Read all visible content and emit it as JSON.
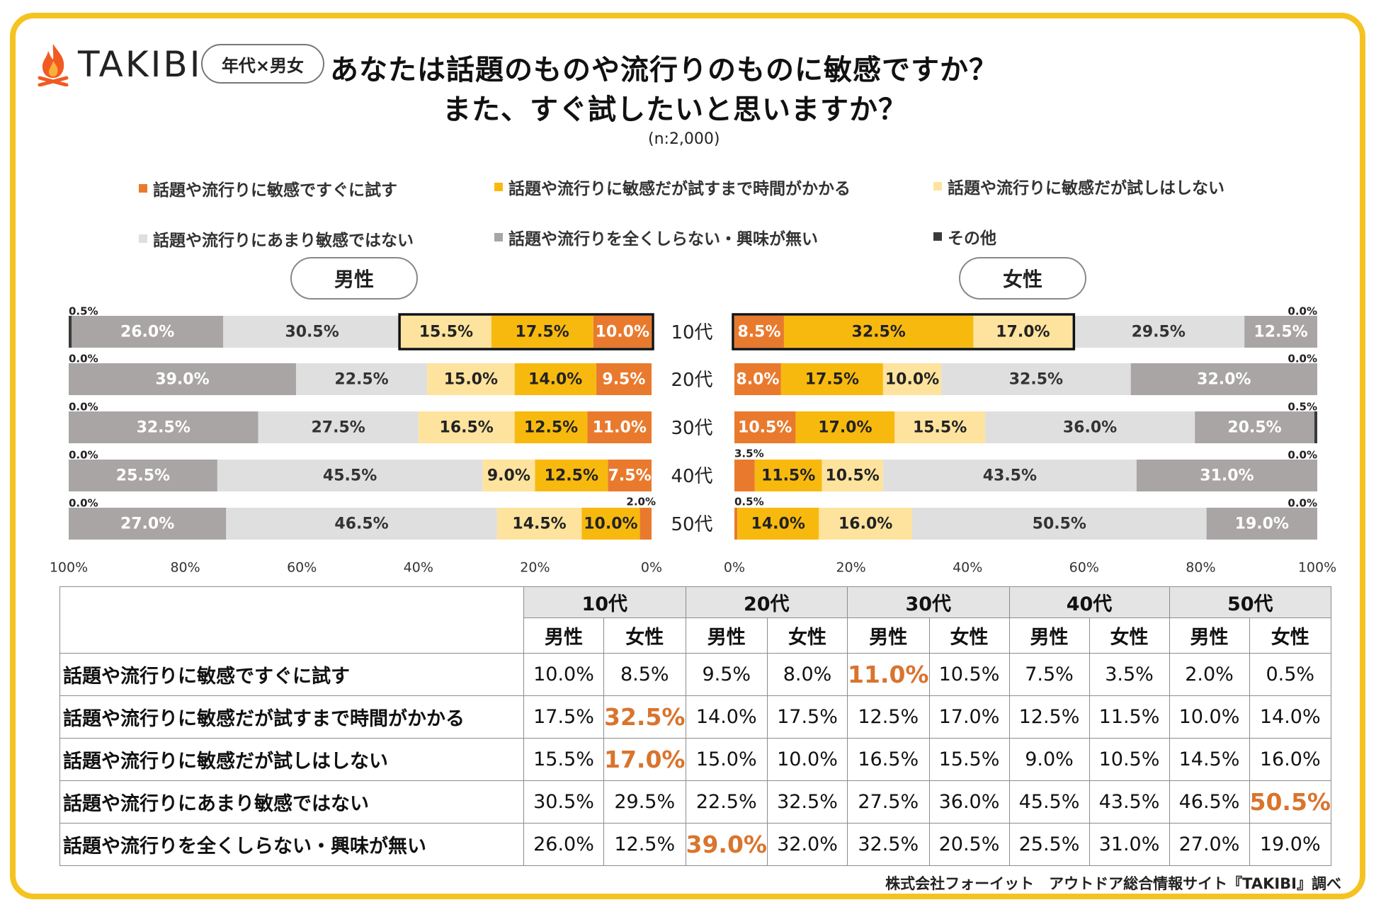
{
  "brand": {
    "name": "TAKIBI",
    "badge": "年代×男女"
  },
  "title": {
    "line1": "あなたは話題のものや流行りのものに敏感ですか？",
    "line2": "また、すぐ試したいと思いますか？",
    "sample": "(n:2,000)"
  },
  "colors": {
    "c1": "#e97a2d",
    "c2": "#f8b90f",
    "c3": "#fde39d",
    "c4": "#e0dfdf",
    "c5": "#a9a5a5",
    "c6": "#3a3a3a",
    "frame": "#f5c320",
    "highlight": "#d9742e"
  },
  "legend": [
    {
      "label": "話題や流行りに敏感ですぐに試す",
      "color": "#e97a2d"
    },
    {
      "label": "話題や流行りに敏感だが試すまで時間がかかる",
      "color": "#f8b90f"
    },
    {
      "label": "話題や流行りに敏感だが試しはしない",
      "color": "#fde39d"
    },
    {
      "label": "話題や流行りにあまり敏感ではない",
      "color": "#e0dfdf"
    },
    {
      "label": "話題や流行りを全くしらない・興味が無い",
      "color": "#a9a5a5"
    },
    {
      "label": "その他",
      "color": "#3a3a3a"
    }
  ],
  "panels": {
    "male": "男性",
    "female": "女性"
  },
  "chart_data": {
    "type": "bar",
    "orientation": "horizontal-stacked-butterfly",
    "categories": [
      "10代",
      "20代",
      "30代",
      "40代",
      "50代"
    ],
    "male_axis_ticks": [
      "100%",
      "80%",
      "60%",
      "40%",
      "20%",
      "0%"
    ],
    "female_axis_ticks": [
      "0%",
      "20%",
      "40%",
      "60%",
      "80%",
      "100%"
    ],
    "xlim": [
      0,
      100
    ],
    "male": [
      {
        "values": [
          10.0,
          17.5,
          15.5,
          30.5,
          26.0,
          0.5
        ],
        "labels": [
          "10.0%",
          "17.5%",
          "15.5%",
          "30.5%",
          "26.0%",
          "0.5%"
        ]
      },
      {
        "values": [
          9.5,
          14.0,
          15.0,
          22.5,
          39.0,
          0.0
        ],
        "labels": [
          "9.5%",
          "14.0%",
          "15.0%",
          "22.5%",
          "39.0%",
          "0.0%"
        ]
      },
      {
        "values": [
          11.0,
          12.5,
          16.5,
          27.5,
          32.5,
          0.0
        ],
        "labels": [
          "11.0%",
          "12.5%",
          "16.5%",
          "27.5%",
          "32.5%",
          "0.0%"
        ]
      },
      {
        "values": [
          7.5,
          12.5,
          9.0,
          45.5,
          25.5,
          0.0
        ],
        "labels": [
          "7.5%",
          "12.5%",
          "9.0%",
          "45.5%",
          "25.5%",
          "0.0%"
        ]
      },
      {
        "values": [
          2.0,
          10.0,
          14.5,
          46.5,
          27.0,
          0.0
        ],
        "labels": [
          "2.0%",
          "10.0%",
          "14.5%",
          "46.5%",
          "27.0%",
          "0.0%"
        ]
      }
    ],
    "female": [
      {
        "values": [
          8.5,
          32.5,
          17.0,
          29.5,
          12.5,
          0.0
        ],
        "labels": [
          "8.5%",
          "32.5%",
          "17.0%",
          "29.5%",
          "12.5%",
          "0.0%"
        ]
      },
      {
        "values": [
          8.0,
          17.5,
          10.0,
          32.5,
          32.0,
          0.0
        ],
        "labels": [
          "8.0%",
          "17.5%",
          "10.0%",
          "32.5%",
          "32.0%",
          "0.0%"
        ]
      },
      {
        "values": [
          10.5,
          17.0,
          15.5,
          36.0,
          20.5,
          0.5
        ],
        "labels": [
          "10.5%",
          "17.0%",
          "15.5%",
          "36.0%",
          "20.5%",
          "0.5%"
        ]
      },
      {
        "values": [
          3.5,
          11.5,
          10.5,
          43.5,
          31.0,
          0.0
        ],
        "labels": [
          "3.5%",
          "11.5%",
          "10.5%",
          "43.5%",
          "31.0%",
          "0.0%"
        ]
      },
      {
        "values": [
          0.5,
          14.0,
          16.0,
          50.5,
          19.0,
          0.0
        ],
        "labels": [
          "0.5%",
          "14.0%",
          "16.0%",
          "50.5%",
          "19.0%",
          "0.0%"
        ]
      }
    ],
    "highlight_boxes": [
      {
        "panel": "male",
        "row": 0,
        "from_segment": 0,
        "to_segment": 2
      },
      {
        "panel": "female",
        "row": 0,
        "from_segment": 0,
        "to_segment": 2
      }
    ]
  },
  "table": {
    "age_headers": [
      "10代",
      "20代",
      "30代",
      "40代",
      "50代"
    ],
    "gender_headers": [
      "男性",
      "女性",
      "男性",
      "女性",
      "男性",
      "女性",
      "男性",
      "女性",
      "男性",
      "女性"
    ],
    "rows": [
      {
        "label": "話題や流行りに敏感ですぐに試す",
        "cells": [
          "10.0%",
          "8.5%",
          "9.5%",
          "8.0%",
          "11.0%",
          "10.5%",
          "7.5%",
          "3.5%",
          "2.0%",
          "0.5%"
        ],
        "highlight": [
          4
        ]
      },
      {
        "label": "話題や流行りに敏感だが試すまで時間がかかる",
        "cells": [
          "17.5%",
          "32.5%",
          "14.0%",
          "17.5%",
          "12.5%",
          "17.0%",
          "12.5%",
          "11.5%",
          "10.0%",
          "14.0%"
        ],
        "highlight": [
          1
        ]
      },
      {
        "label": "話題や流行りに敏感だが試しはしない",
        "cells": [
          "15.5%",
          "17.0%",
          "15.0%",
          "10.0%",
          "16.5%",
          "15.5%",
          "9.0%",
          "10.5%",
          "14.5%",
          "16.0%"
        ],
        "highlight": [
          1
        ]
      },
      {
        "label": "話題や流行りにあまり敏感ではない",
        "cells": [
          "30.5%",
          "29.5%",
          "22.5%",
          "32.5%",
          "27.5%",
          "36.0%",
          "45.5%",
          "43.5%",
          "46.5%",
          "50.5%"
        ],
        "highlight": [
          9
        ]
      },
      {
        "label": "話題や流行りを全くしらない・興味が無い",
        "cells": [
          "26.0%",
          "12.5%",
          "39.0%",
          "32.0%",
          "32.5%",
          "20.5%",
          "25.5%",
          "31.0%",
          "27.0%",
          "19.0%"
        ],
        "highlight": [
          2
        ]
      }
    ]
  },
  "source": "株式会社フォーイット　アウトドア総合情報サイト『TAKIBI』調べ"
}
